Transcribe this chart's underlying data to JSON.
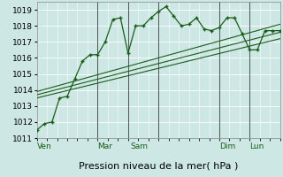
{
  "background_color": "#cde8e4",
  "grid_color": "#b8ddd8",
  "plot_bg": "#cde8e4",
  "line_color": "#1a5c1a",
  "ylim": [
    1011,
    1019.5
  ],
  "xlim": [
    0,
    96
  ],
  "yticks": [
    1011,
    1012,
    1013,
    1014,
    1015,
    1016,
    1017,
    1018,
    1019
  ],
  "xlabel": "Pression niveau de la mer( hPa )",
  "xlabel_fontsize": 8,
  "tick_fontsize": 6.5,
  "day_lines_x": [
    24,
    36,
    48,
    72,
    84
  ],
  "day_labels": [
    {
      "x": 0,
      "label": "Ven"
    },
    {
      "x": 24,
      "label": "Mar"
    },
    {
      "x": 37,
      "label": "Sam"
    },
    {
      "x": 72,
      "label": "Dim"
    },
    {
      "x": 84,
      "label": "Lun"
    }
  ],
  "main_series": {
    "x": [
      0,
      3,
      6,
      9,
      12,
      15,
      18,
      21,
      24,
      27,
      30,
      33,
      36,
      39,
      42,
      45,
      48,
      51,
      54,
      57,
      60,
      63,
      66,
      69,
      72,
      75,
      78,
      81,
      84,
      87,
      90,
      93,
      96
    ],
    "y": [
      1011.5,
      1011.9,
      1012.0,
      1013.5,
      1013.6,
      1014.7,
      1015.8,
      1016.2,
      1016.2,
      1017.0,
      1018.4,
      1018.5,
      1016.3,
      1018.0,
      1018.0,
      1018.5,
      1018.9,
      1019.2,
      1018.6,
      1018.0,
      1018.1,
      1018.5,
      1017.8,
      1017.7,
      1017.9,
      1018.5,
      1018.5,
      1017.5,
      1016.5,
      1016.5,
      1017.7,
      1017.7,
      1017.7
    ]
  },
  "straight_lines": [
    {
      "x": [
        0,
        96
      ],
      "y": [
        1013.5,
        1017.2
      ]
    },
    {
      "x": [
        0,
        96
      ],
      "y": [
        1013.7,
        1017.6
      ]
    },
    {
      "x": [
        0,
        96
      ],
      "y": [
        1013.9,
        1018.1
      ]
    }
  ]
}
